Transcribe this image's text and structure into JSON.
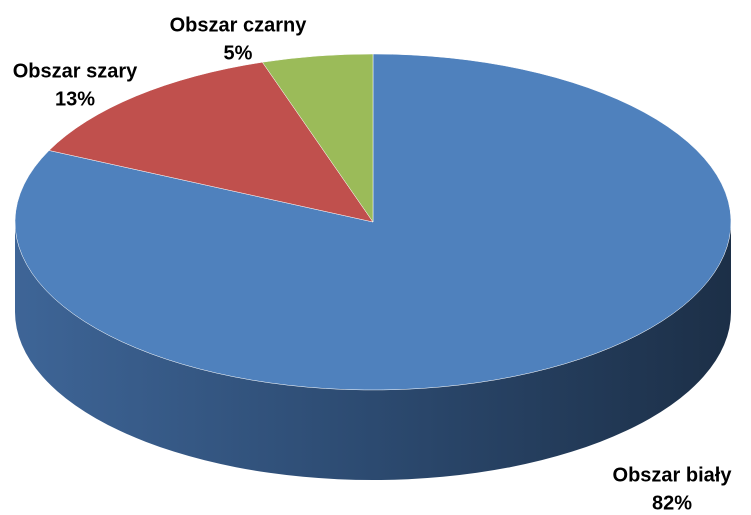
{
  "chart_data": {
    "type": "pie3d",
    "categories": [
      "Obszar biały",
      "Obszar szary",
      "Obszar czarny"
    ],
    "values": [
      82,
      13,
      5
    ],
    "value_labels": [
      "82%",
      "13%",
      "5%"
    ],
    "colors": [
      "#4f81bd",
      "#c0504d",
      "#9bbb59"
    ]
  }
}
